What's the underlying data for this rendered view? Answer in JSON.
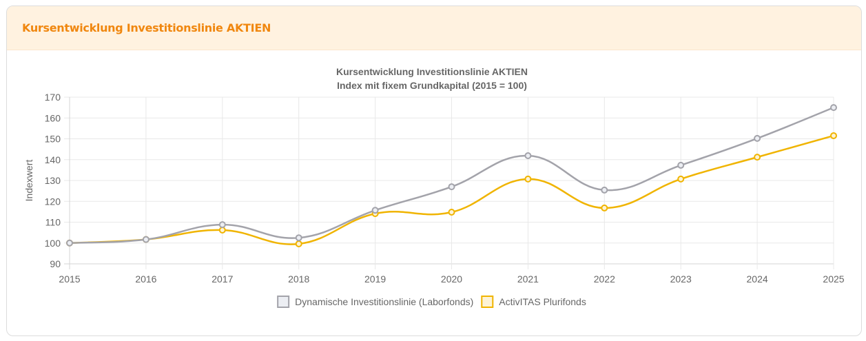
{
  "card": {
    "title": "Kursentwicklung Investitionslinie AKTIEN"
  },
  "chart_data": {
    "type": "line",
    "title": "Kursentwicklung Investitionslinie AKTIEN",
    "subtitle": "Index mit fixem Grundkapital (2015 = 100)",
    "xlabel": "",
    "ylabel": "Indexwert",
    "x": [
      "2015",
      "2016",
      "2017",
      "2018",
      "2019",
      "2020",
      "2021",
      "2022",
      "2023",
      "2024",
      "2025"
    ],
    "ylim": [
      90,
      170
    ],
    "yticks": [
      90,
      100,
      110,
      120,
      130,
      140,
      150,
      160,
      170
    ],
    "grid": true,
    "legend_position": "bottom",
    "curve": "smooth",
    "series": [
      {
        "name": "Dynamische Investitionslinie (Laborfonds)",
        "color": "#a3a3aa",
        "fill": "#eceef3",
        "values": [
          100,
          101.7,
          108.8,
          102.5,
          115.7,
          127.0,
          141.9,
          125.4,
          137.3,
          150.2,
          165.0
        ]
      },
      {
        "name": "ActivITAS Plurifonds",
        "color": "#f0b400",
        "fill": "#fdf3d6",
        "values": [
          100,
          101.7,
          106.2,
          99.6,
          114.1,
          114.8,
          130.7,
          116.8,
          130.7,
          141.2,
          151.5
        ]
      }
    ]
  }
}
